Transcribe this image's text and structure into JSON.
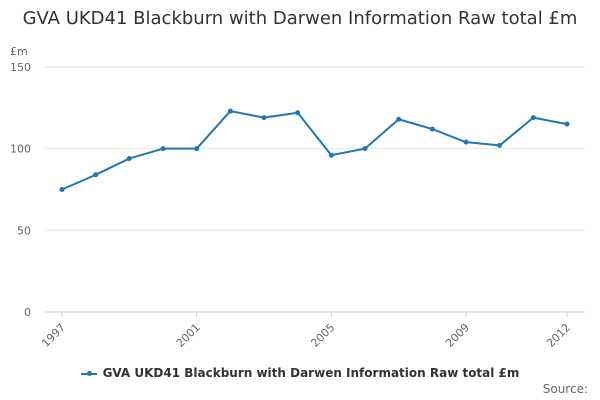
{
  "chart_data": {
    "type": "line",
    "title": "GVA UKD41 Blackburn with Darwen Information Raw total £m",
    "ylabel": "£m",
    "xlabel": "",
    "ylim": [
      0,
      150
    ],
    "y_ticks": [
      0,
      50,
      100,
      150
    ],
    "x_ticks": [
      "1997",
      "2001",
      "2005",
      "2009",
      "2012"
    ],
    "x": [
      1997,
      1998,
      1999,
      2000,
      2001,
      2002,
      2003,
      2004,
      2005,
      2006,
      2007,
      2008,
      2009,
      2010,
      2011,
      2012
    ],
    "series": [
      {
        "name": "GVA UKD41 Blackburn with Darwen Information Raw total £m",
        "values": [
          75,
          84,
          94,
          100,
          100,
          123,
          119,
          122,
          96,
          100,
          118,
          112,
          104,
          102,
          119,
          115
        ]
      }
    ],
    "grid": true,
    "legend_position": "bottom",
    "colors": {
      "line": "#1f77b4"
    },
    "source_label": "Source:"
  }
}
